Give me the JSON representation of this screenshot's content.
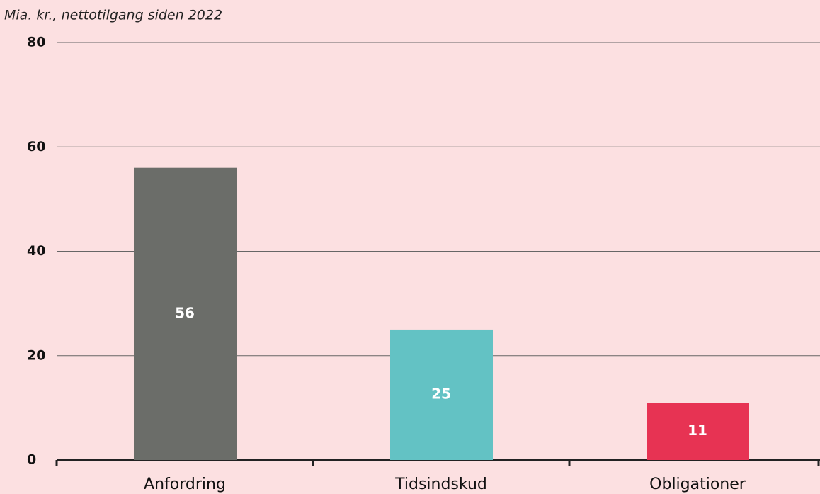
{
  "chart_data": {
    "type": "bar",
    "subtitle": "Mia. kr., nettotilgang siden 2022",
    "categories": [
      "Anfordring",
      "Tidsindskud",
      "Obligationer"
    ],
    "values": [
      56,
      25,
      11
    ],
    "colors": [
      "#6b6d69",
      "#63c2c4",
      "#e73353"
    ],
    "ylim": [
      0,
      80
    ],
    "yticks": [
      0,
      20,
      40,
      60,
      80
    ],
    "grid": true
  }
}
